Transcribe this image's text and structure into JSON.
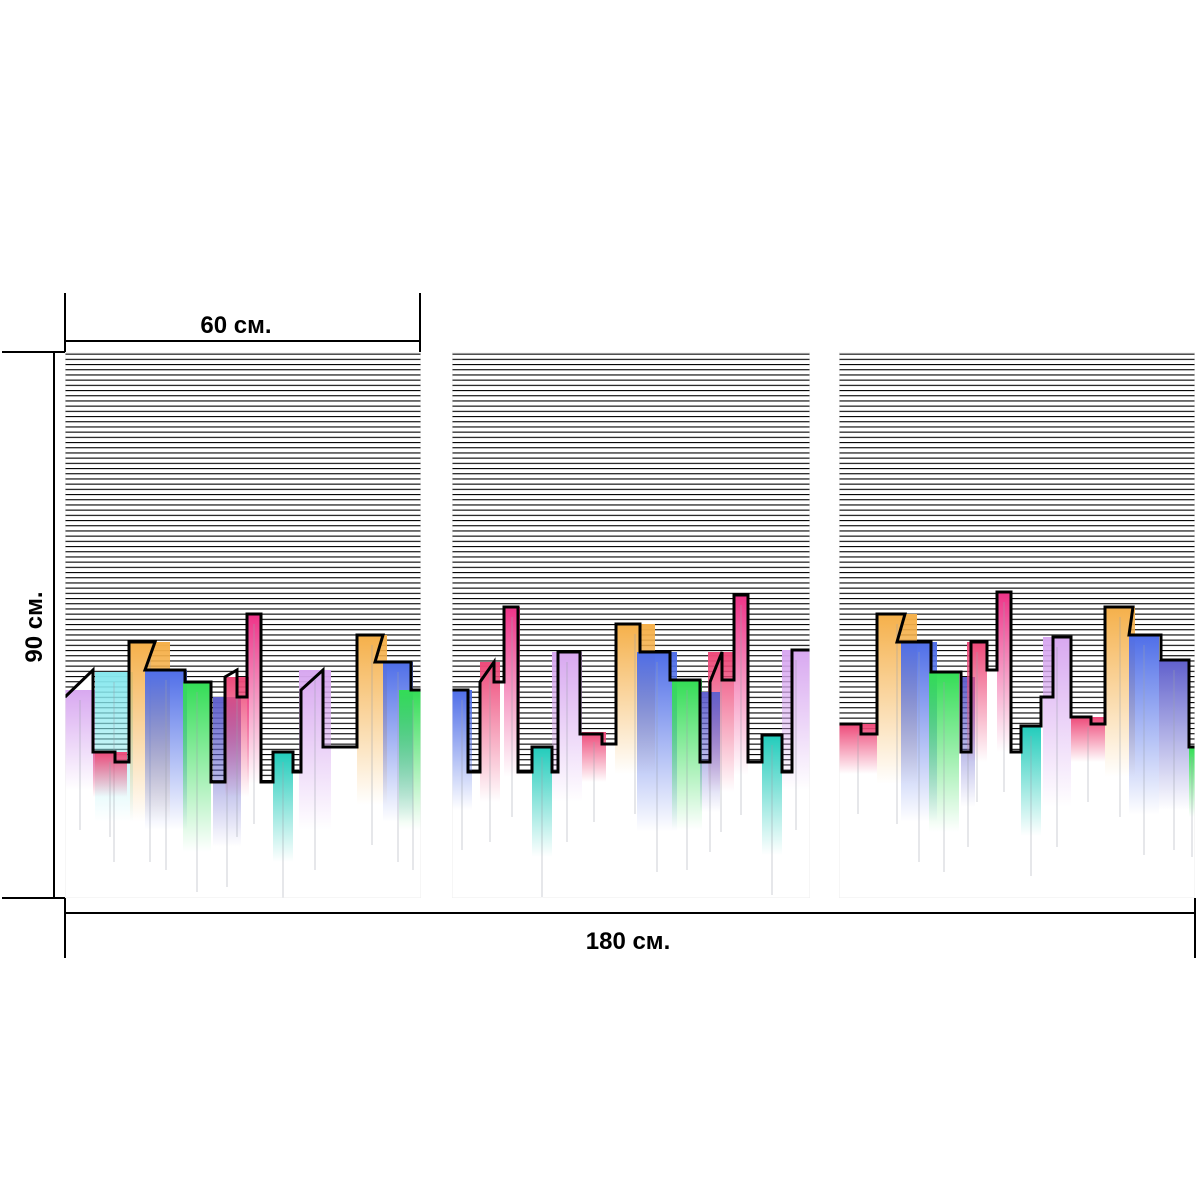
{
  "dimensions": {
    "panel_width_label": "60 см.",
    "total_width_label": "180 см.",
    "height_label": "90 см."
  },
  "product": {
    "panel_count": 3,
    "artwork": "abstract striped city skyline",
    "colors": {
      "stripe": "#000000",
      "outline": "#000000",
      "orange": "#f5b04a",
      "blue": "#4f6ee8",
      "green": "#33dd55",
      "pink": "#ee4a7a",
      "magenta": "#ee3388",
      "teal": "#22ccbb",
      "lilac": "#d8a8f0",
      "cyan": "#88e8ee",
      "violet": "#6060cc"
    }
  }
}
